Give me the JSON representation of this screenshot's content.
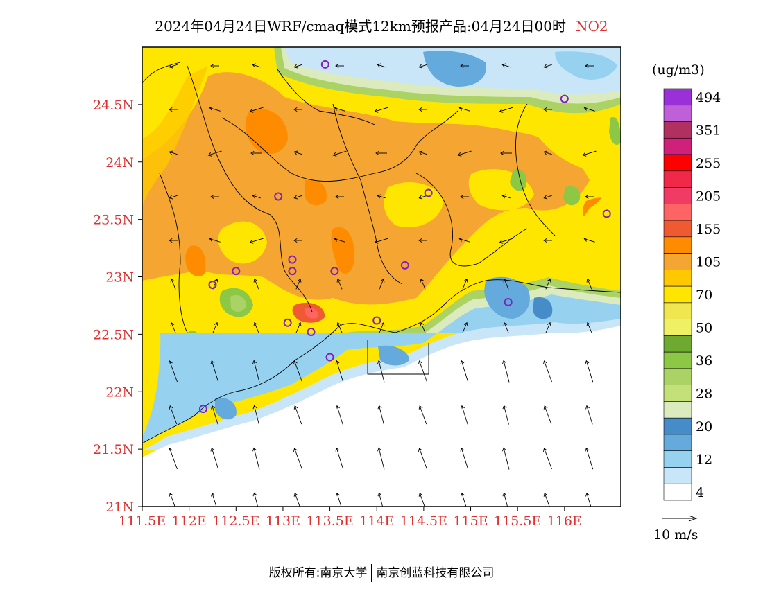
{
  "title": {
    "main": "2024年04月24日WRF/cmaq模式12km预报产品:04月24日00时",
    "pollutant": "NO2"
  },
  "colorbar": {
    "unit": "(ug/m3)",
    "levels": [
      {
        "label": "494",
        "color": "#9a30d8"
      },
      {
        "label": "",
        "color": "#c060d8"
      },
      {
        "label": "351",
        "color": "#b03060"
      },
      {
        "label": "",
        "color": "#d0207a"
      },
      {
        "label": "255",
        "color": "#ff0000"
      },
      {
        "label": "",
        "color": "#f0284a"
      },
      {
        "label": "205",
        "color": "#f03c64"
      },
      {
        "label": "",
        "color": "#ff6464"
      },
      {
        "label": "155",
        "color": "#f05a32"
      },
      {
        "label": "",
        "color": "#ff8c00"
      },
      {
        "label": "105",
        "color": "#f5a532"
      },
      {
        "label": "",
        "color": "#ffc800"
      },
      {
        "label": "70",
        "color": "#ffe600"
      },
      {
        "label": "",
        "color": "#f0e650"
      },
      {
        "label": "50",
        "color": "#f0f064"
      },
      {
        "label": "",
        "color": "#6eaa32"
      },
      {
        "label": "36",
        "color": "#8cc846"
      },
      {
        "label": "",
        "color": "#aad264"
      },
      {
        "label": "28",
        "color": "#c3e178"
      },
      {
        "label": "",
        "color": "#dcebbe"
      },
      {
        "label": "20",
        "color": "#468cc8"
      },
      {
        "label": "",
        "color": "#64aadc"
      },
      {
        "label": "12",
        "color": "#96d2f0"
      },
      {
        "label": "",
        "color": "#c8e6f8"
      },
      {
        "label": "4",
        "color": "#ffffff"
      }
    ]
  },
  "axes": {
    "lat_ticks": [
      "24.5N",
      "24N",
      "23.5N",
      "23N",
      "22.5N",
      "22N",
      "21.5N",
      "21N"
    ],
    "lon_ticks": [
      "111.5E",
      "112E",
      "112.5E",
      "113E",
      "113.5E",
      "114E",
      "114.5E",
      "115E",
      "115.5E",
      "116E"
    ]
  },
  "wind_legend": {
    "label": "10 m/s"
  },
  "footer": {
    "left": "版权所有:南京大学",
    "right": "南京创蓝科技有限公司"
  },
  "colors": {
    "tick_label": "#e03030",
    "ocean": "#ffffff",
    "station_marker": "#8020c0"
  },
  "map_data": {
    "extent": {
      "lon": [
        111.5,
        116.6
      ],
      "lat": [
        21.0,
        25.0
      ]
    },
    "stations": [
      {
        "lon": 113.45,
        "lat": 24.85
      },
      {
        "lon": 116.0,
        "lat": 24.55
      },
      {
        "lon": 112.95,
        "lat": 23.7
      },
      {
        "lon": 114.55,
        "lat": 23.73
      },
      {
        "lon": 116.45,
        "lat": 23.55
      },
      {
        "lon": 113.1,
        "lat": 23.15
      },
      {
        "lon": 112.5,
        "lat": 23.05
      },
      {
        "lon": 113.1,
        "lat": 23.05
      },
      {
        "lon": 113.55,
        "lat": 23.05
      },
      {
        "lon": 114.3,
        "lat": 23.1
      },
      {
        "lon": 112.25,
        "lat": 22.93
      },
      {
        "lon": 115.4,
        "lat": 22.78
      },
      {
        "lon": 113.05,
        "lat": 22.6
      },
      {
        "lon": 113.3,
        "lat": 22.52
      },
      {
        "lon": 114.0,
        "lat": 22.62
      },
      {
        "lon": 113.5,
        "lat": 22.3
      },
      {
        "lon": 112.15,
        "lat": 21.85
      }
    ]
  }
}
